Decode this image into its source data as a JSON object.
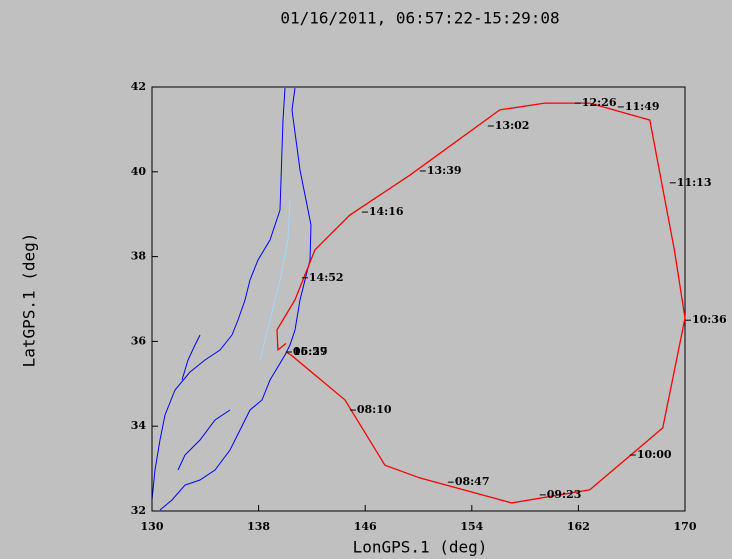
{
  "chart_data": {
    "type": "line",
    "title": "01/16/2011, 06:57:22-15:29:08",
    "x_label": "LonGPS.1 (deg)",
    "y_label": "LatGPS.1 (deg)",
    "xlim": [
      130,
      170
    ],
    "xticks": [
      130,
      138,
      146,
      154,
      162,
      170
    ],
    "ylim": [
      32,
      42
    ],
    "yticks": [
      32,
      34,
      36,
      38,
      40,
      42
    ],
    "series": [
      {
        "color": "#ff0000",
        "x": [
          140.05,
          140.43,
          144.48,
          147.48,
          150.1,
          157.0,
          162.86,
          168.33,
          170.0,
          169.2,
          167.36,
          162.86,
          159.48,
          156.1,
          149.35,
          144.85,
          142.23,
          140.73,
          139.38,
          139.45,
          140.05
        ],
        "values": [
          35.75,
          35.68,
          34.62,
          33.08,
          32.78,
          32.19,
          32.5,
          33.96,
          36.55,
          38.16,
          41.22,
          41.62,
          41.62,
          41.46,
          39.92,
          38.98,
          38.16,
          36.98,
          36.27,
          35.8,
          35.95
        ]
      }
    ],
    "annotations": [
      {
        "label": "06:57",
        "x": 140.05,
        "y": 35.75
      },
      {
        "label": "15:29",
        "x": 140.05,
        "y": 35.75
      },
      {
        "label": "08:10",
        "x": 144.85,
        "y": 34.38
      },
      {
        "label": "08:47",
        "x": 152.2,
        "y": 32.68
      },
      {
        "label": "09:23",
        "x": 159.1,
        "y": 32.38
      },
      {
        "label": "10:00",
        "x": 165.86,
        "y": 33.32
      },
      {
        "label": "10:36",
        "x": 170.0,
        "y": 36.5
      },
      {
        "label": "11:13",
        "x": 168.86,
        "y": 39.74
      },
      {
        "label": "11:49",
        "x": 164.96,
        "y": 41.53
      },
      {
        "label": "12:26",
        "x": 161.73,
        "y": 41.62
      },
      {
        "label": "13:02",
        "x": 155.2,
        "y": 41.08
      },
      {
        "label": "13:39",
        "x": 150.1,
        "y": 40.02
      },
      {
        "label": "14:16",
        "x": 145.75,
        "y": 39.05
      },
      {
        "label": "14:52",
        "x": 141.25,
        "y": 37.5
      }
    ]
  }
}
